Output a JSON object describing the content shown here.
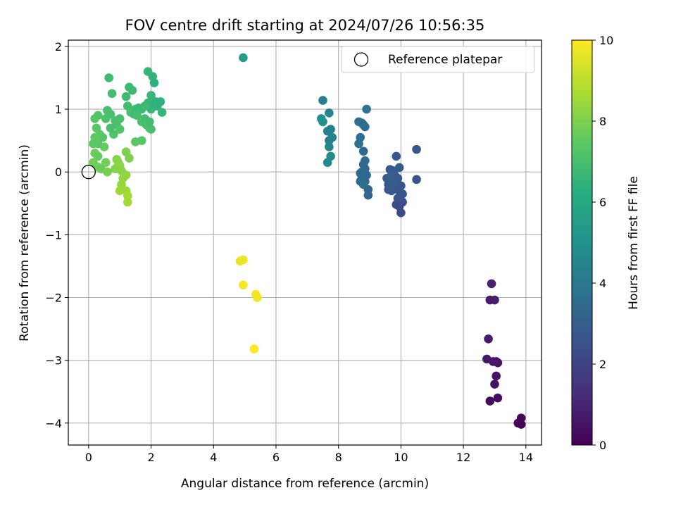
{
  "chart_data": {
    "type": "scatter",
    "title": "FOV centre drift starting at 2024/07/26 10:56:35",
    "xlabel": "Angular distance from reference (arcmin)",
    "ylabel": "Rotation from reference (arcmin)",
    "xlim": [
      -0.65,
      14.5
    ],
    "ylim": [
      -4.35,
      2.1
    ],
    "xticks": [
      "0",
      "2",
      "4",
      "6",
      "8",
      "10",
      "12",
      "14"
    ],
    "yticks": [
      "−4",
      "−3",
      "−2",
      "−1",
      "0",
      "1",
      "2"
    ],
    "grid": true,
    "legend": {
      "placement": "upper-right",
      "entries": [
        "Reference platepar"
      ]
    },
    "reference_point": {
      "x": 0,
      "y": 0
    },
    "colorbar": {
      "label": "Hours from first FF file",
      "range": [
        0,
        10
      ],
      "ticks": [
        "0",
        "2",
        "4",
        "6",
        "8",
        "10"
      ],
      "colormap": "viridis"
    },
    "series": [
      {
        "points": [
          [
            13.8,
            -4.0,
            0.1
          ],
          [
            13.85,
            -4.02,
            0.1
          ],
          [
            13.75,
            -4.0,
            0.15
          ],
          [
            13.85,
            -3.92,
            0.2
          ],
          [
            12.85,
            -3.65,
            0.3
          ],
          [
            13.1,
            -3.6,
            0.4
          ],
          [
            13.0,
            -3.38,
            0.5
          ],
          [
            13.05,
            -3.25,
            0.55
          ],
          [
            13.1,
            -3.04,
            0.6
          ],
          [
            13.05,
            -3.02,
            0.6
          ],
          [
            12.95,
            -3.02,
            0.65
          ],
          [
            12.75,
            -2.98,
            0.7
          ],
          [
            12.8,
            -2.66,
            0.75
          ],
          [
            12.85,
            -2.04,
            0.8
          ],
          [
            13.0,
            -2.04,
            0.85
          ],
          [
            12.9,
            -1.78,
            0.9
          ],
          [
            10.5,
            0.36,
            2.7
          ],
          [
            10.5,
            -0.12,
            2.5
          ],
          [
            9.85,
            0.25,
            2.8
          ],
          [
            9.95,
            0.07,
            2.9
          ],
          [
            9.65,
            0.04,
            2.8
          ],
          [
            9.75,
            0.02,
            2.7
          ],
          [
            9.55,
            -0.1,
            2.8
          ],
          [
            9.6,
            -0.2,
            2.9
          ],
          [
            9.6,
            -0.28,
            2.8
          ],
          [
            9.7,
            -0.3,
            2.7
          ],
          [
            9.8,
            -0.15,
            2.6
          ],
          [
            9.85,
            -0.2,
            2.5
          ],
          [
            9.95,
            -0.3,
            2.6
          ],
          [
            9.9,
            -0.42,
            2.4
          ],
          [
            9.85,
            -0.52,
            2.4
          ],
          [
            9.95,
            -0.55,
            2.3
          ],
          [
            10.05,
            -0.48,
            2.4
          ],
          [
            9.95,
            -0.4,
            2.5
          ],
          [
            10.0,
            -0.65,
            2.3
          ],
          [
            9.8,
            -0.05,
            2.9
          ],
          [
            9.7,
            -0.05,
            3.0
          ],
          [
            9.9,
            -0.1,
            2.8
          ],
          [
            10.0,
            -0.22,
            2.7
          ],
          [
            9.65,
            -0.15,
            2.9
          ],
          [
            9.75,
            -0.2,
            2.9
          ],
          [
            10.05,
            -0.35,
            2.6
          ],
          [
            8.9,
            1.0,
            3.8
          ],
          [
            8.65,
            0.8,
            3.6
          ],
          [
            8.75,
            0.78,
            3.7
          ],
          [
            8.8,
            0.75,
            3.5
          ],
          [
            8.85,
            0.72,
            3.6
          ],
          [
            8.7,
            0.55,
            3.6
          ],
          [
            8.65,
            0.45,
            3.7
          ],
          [
            8.8,
            0.33,
            3.4
          ],
          [
            8.85,
            0.18,
            3.5
          ],
          [
            8.8,
            0.12,
            3.4
          ],
          [
            8.85,
            0.05,
            3.4
          ],
          [
            8.7,
            -0.02,
            3.5
          ],
          [
            8.75,
            -0.1,
            3.5
          ],
          [
            8.7,
            -0.15,
            3.5
          ],
          [
            8.85,
            -0.15,
            3.4
          ],
          [
            8.8,
            -0.2,
            3.5
          ],
          [
            8.95,
            -0.28,
            3.3
          ],
          [
            8.95,
            -0.37,
            3.3
          ],
          [
            8.75,
            0.0,
            3.4
          ],
          [
            8.9,
            -0.05,
            3.3
          ],
          [
            7.5,
            1.14,
            4.3
          ],
          [
            7.45,
            0.85,
            5.0
          ],
          [
            7.5,
            0.8,
            5.0
          ],
          [
            7.7,
            0.94,
            4.5
          ],
          [
            7.75,
            0.68,
            4.2
          ],
          [
            7.65,
            0.65,
            4.3
          ],
          [
            7.8,
            0.55,
            4.4
          ],
          [
            7.7,
            0.5,
            4.4
          ],
          [
            7.7,
            0.4,
            4.5
          ],
          [
            7.75,
            0.25,
            4.7
          ],
          [
            7.65,
            0.15,
            4.7
          ],
          [
            4.95,
            1.82,
            5.5
          ],
          [
            0.65,
            1.5,
            6.8
          ],
          [
            0.75,
            1.25,
            6.9
          ],
          [
            0.6,
            0.98,
            7.0
          ],
          [
            0.7,
            0.92,
            7.0
          ],
          [
            0.55,
            0.85,
            7.1
          ],
          [
            0.3,
            0.9,
            7.2
          ],
          [
            0.2,
            0.85,
            7.3
          ],
          [
            0.25,
            0.7,
            7.4
          ],
          [
            0.35,
            0.6,
            7.4
          ],
          [
            0.45,
            0.55,
            7.3
          ],
          [
            0.2,
            0.55,
            7.5
          ],
          [
            0.15,
            0.45,
            7.5
          ],
          [
            0.3,
            0.45,
            7.4
          ],
          [
            0.5,
            0.4,
            7.6
          ],
          [
            0.2,
            0.3,
            7.7
          ],
          [
            0.3,
            0.25,
            7.6
          ],
          [
            0.15,
            0.15,
            7.8
          ],
          [
            0.3,
            0.08,
            7.8
          ],
          [
            0.4,
            0.05,
            7.7
          ],
          [
            0.6,
            0.0,
            7.9
          ],
          [
            0.55,
            0.15,
            7.8
          ],
          [
            0.8,
            0.6,
            7.2
          ],
          [
            0.9,
            0.75,
            7.1
          ],
          [
            1.0,
            0.85,
            7.0
          ],
          [
            1.0,
            0.68,
            7.2
          ],
          [
            0.85,
            0.82,
            7.1
          ],
          [
            0.7,
            0.7,
            7.0
          ],
          [
            1.2,
            1.2,
            6.8
          ],
          [
            1.3,
            1.35,
            6.7
          ],
          [
            1.4,
            1.3,
            6.8
          ],
          [
            1.25,
            1.05,
            6.9
          ],
          [
            1.35,
            0.95,
            7.0
          ],
          [
            1.45,
            0.92,
            6.9
          ],
          [
            1.5,
            1.0,
            6.8
          ],
          [
            1.6,
            1.02,
            6.7
          ],
          [
            1.7,
            1.0,
            6.8
          ],
          [
            1.55,
            0.9,
            7.0
          ],
          [
            1.7,
            0.8,
            7.1
          ],
          [
            1.8,
            0.85,
            6.9
          ],
          [
            1.85,
            0.75,
            7.0
          ],
          [
            1.95,
            0.7,
            7.1
          ],
          [
            2.0,
            0.68,
            7.0
          ],
          [
            1.95,
            0.8,
            6.9
          ],
          [
            1.9,
            1.1,
            6.6
          ],
          [
            2.0,
            1.0,
            6.6
          ],
          [
            2.1,
            1.05,
            6.5
          ],
          [
            2.15,
            1.12,
            6.4
          ],
          [
            2.2,
            1.05,
            6.5
          ],
          [
            2.3,
            1.12,
            6.4
          ],
          [
            2.35,
            0.95,
            6.6
          ],
          [
            2.0,
            1.22,
            6.6
          ],
          [
            1.9,
            1.6,
            6.6
          ],
          [
            2.05,
            1.52,
            6.5
          ],
          [
            2.1,
            1.42,
            6.4
          ],
          [
            1.8,
            1.05,
            6.8
          ],
          [
            1.7,
            0.5,
            7.3
          ],
          [
            1.5,
            0.48,
            7.4
          ],
          [
            1.2,
            0.32,
            8.0
          ],
          [
            1.3,
            0.22,
            8.0
          ],
          [
            0.9,
            0.2,
            8.1
          ],
          [
            1.0,
            0.1,
            8.2
          ],
          [
            1.05,
            0.02,
            8.2
          ],
          [
            1.1,
            -0.1,
            8.3
          ],
          [
            1.2,
            -0.05,
            8.3
          ],
          [
            1.05,
            -0.2,
            8.4
          ],
          [
            1.0,
            -0.3,
            8.5
          ],
          [
            1.2,
            -0.3,
            8.5
          ],
          [
            1.25,
            -0.38,
            8.6
          ],
          [
            1.25,
            -0.48,
            8.6
          ],
          [
            0.85,
            0.05,
            8.1
          ],
          [
            0.95,
            0.15,
            8.2
          ],
          [
            4.95,
            -1.4,
            9.8
          ],
          [
            4.85,
            -1.42,
            9.7
          ],
          [
            4.95,
            -1.8,
            9.9
          ],
          [
            5.35,
            -1.95,
            9.9
          ],
          [
            5.4,
            -2.0,
            9.8
          ],
          [
            5.3,
            -2.82,
            10.0
          ]
        ]
      }
    ]
  }
}
